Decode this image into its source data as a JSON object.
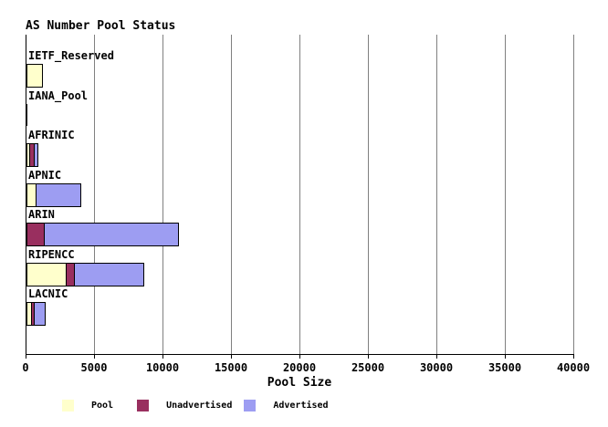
{
  "title": "AS Number Pool Status",
  "colors": {
    "pool": "#FFFFCC",
    "unadvertised": "#992F5F",
    "advertised": "#9D9DF2",
    "grid": "#808080",
    "axis": "#000000",
    "background": "#FFFFFF"
  },
  "chart_data": {
    "type": "bar",
    "orientation": "horizontal",
    "stacked": true,
    "title": "AS Number Pool Status",
    "xlabel": "Pool Size",
    "xlim": [
      0,
      40000
    ],
    "xticks": [
      0,
      5000,
      10000,
      15000,
      20000,
      25000,
      30000,
      35000,
      40000
    ],
    "grid": true,
    "legend_position": "bottom",
    "categories": [
      "IETF_Reserved",
      "IANA_Pool",
      "AFRINIC",
      "APNIC",
      "ARIN",
      "RIPENCC",
      "LACNIC"
    ],
    "series": [
      {
        "name": "Pool",
        "color": "#FFFFCC",
        "values": [
          1067,
          0,
          150,
          580,
          0,
          2830,
          270
        ]
      },
      {
        "name": "Unadvertised",
        "color": "#992F5F",
        "values": [
          0,
          0,
          245,
          0,
          1230,
          505,
          160
        ]
      },
      {
        "name": "Advertised",
        "color": "#9D9DF2",
        "values": [
          0,
          0,
          200,
          3170,
          9700,
          5015,
          700
        ]
      }
    ]
  },
  "legend": {
    "items": [
      {
        "label": "Pool"
      },
      {
        "label": "Unadvertised"
      },
      {
        "label": "Advertised"
      }
    ]
  }
}
